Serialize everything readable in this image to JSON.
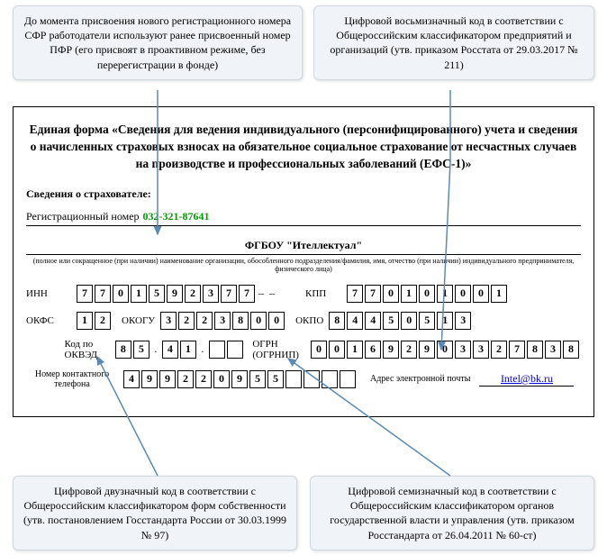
{
  "callouts": {
    "top_left": "До момента присвоения нового регистрационного номера СФР работодатели используют ранее присвоенный номер ПФР (его присвоят в проактивном режиме, без перерегистрации в фонде)",
    "top_right": "Цифровой восьмизначный код в соответствии с Общероссийским классификатором предприятий и организаций (утв. приказом Росстата от 29.03.2017 № 211)",
    "bottom_left": "Цифровой двузначный код в соответствии с Общероссийским классификатором форм собственности (утв. постановлением Госстандарта России от 30.03.1999 № 97)",
    "bottom_right": "Цифровой семизначный код в соответствии с Общероссийским классификатором органов государственной власти и управления (утв. приказом Росстандарта от 26.04.2011 № 60-ст)"
  },
  "form": {
    "title": "Единая форма «Сведения для ведения индивидуального (персонифицированного) учета и сведения о начисленных страховых взносах на обязательное социальное страхование от несчастных случаев на производстве и профессиональных заболеваний (ЕФС-1)»",
    "section_label": "Сведения о страхователе:",
    "reg_label": "Регистрационный номер",
    "reg_number": "032-321-87641",
    "org_name": "ФГБОУ \"Ителлектуал\"",
    "tiny_caption": "(полное или сокращенное (при наличии) наименование организации, обособленного подразделения/фамилия, имя, отчество (при наличии) индивидуального предпринимателя, физического лица)",
    "inn_label": "ИНН",
    "inn": [
      "7",
      "7",
      "0",
      "1",
      "5",
      "9",
      "2",
      "3",
      "7",
      "7",
      "–",
      "–"
    ],
    "kpp_label": "КПП",
    "kpp": [
      "7",
      "7",
      "0",
      "1",
      "0",
      "1",
      "0",
      "0",
      "1"
    ],
    "okfs_label": "ОКФС",
    "okfs": [
      "1",
      "2"
    ],
    "okogu_label": "ОКОГУ",
    "okogu": [
      "3",
      "2",
      "2",
      "3",
      "8",
      "0",
      "0"
    ],
    "okpo_label": "ОКПО",
    "okpo": [
      "8",
      "4",
      "4",
      "5",
      "0",
      "5",
      "1",
      "3"
    ],
    "okved_label": "Код по ОКВЭД",
    "okved": [
      "8",
      "5",
      ".",
      "4",
      "1",
      ".",
      "",
      ""
    ],
    "ogrn_label": "ОГРН (ОГРНИП)",
    "ogrn": [
      "0",
      "0",
      "1",
      "6",
      "9",
      "2",
      "9",
      "0",
      "3",
      "3",
      "2",
      "7",
      "8",
      "3",
      "8"
    ],
    "phone_label": "Номер контактного телефона",
    "phone": [
      "4",
      "9",
      "9",
      "2",
      "2",
      "0",
      "9",
      "5",
      "5",
      "",
      "",
      "",
      ""
    ],
    "email_label": "Адрес электронной почты",
    "email": "Intel@bk.ru"
  },
  "colors": {
    "callout_bg": "#f0f4f8",
    "callout_border": "#d0d8e0",
    "reg_green": "#00a000",
    "link": "#0000ee",
    "arrow": "#5b8ab3"
  }
}
